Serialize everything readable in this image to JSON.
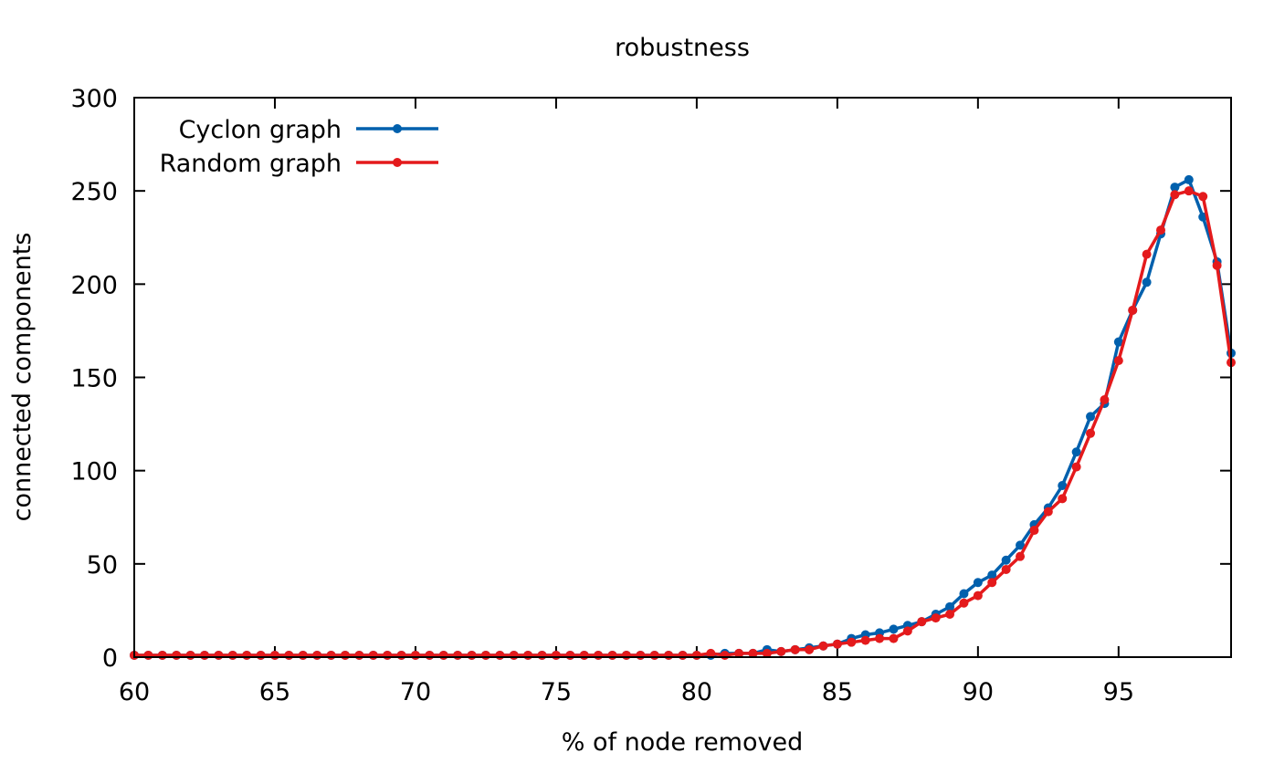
{
  "chart_data": {
    "type": "line",
    "title": "robustness",
    "xlabel": "% of node removed",
    "ylabel": "connected components",
    "xlim": [
      60,
      99
    ],
    "ylim": [
      0,
      300
    ],
    "xticks": [
      60,
      65,
      70,
      75,
      80,
      85,
      90,
      95
    ],
    "yticks": [
      0,
      50,
      100,
      150,
      200,
      250,
      300
    ],
    "grid": false,
    "legend_position": "top-left",
    "series": [
      {
        "name": "Cyclon graph",
        "color": "#0060ad",
        "points": [
          [
            60,
            1
          ],
          [
            60.5,
            1
          ],
          [
            61,
            1
          ],
          [
            61.5,
            1
          ],
          [
            62,
            1
          ],
          [
            62.5,
            1
          ],
          [
            63,
            1
          ],
          [
            63.5,
            1
          ],
          [
            64,
            1
          ],
          [
            64.5,
            1
          ],
          [
            65,
            1
          ],
          [
            65.5,
            1
          ],
          [
            66,
            1
          ],
          [
            66.5,
            1
          ],
          [
            67,
            1
          ],
          [
            67.5,
            1
          ],
          [
            68,
            1
          ],
          [
            68.5,
            1
          ],
          [
            69,
            1
          ],
          [
            69.5,
            1
          ],
          [
            70,
            1
          ],
          [
            70.5,
            1
          ],
          [
            71,
            1
          ],
          [
            71.5,
            1
          ],
          [
            72,
            1
          ],
          [
            72.5,
            1
          ],
          [
            73,
            1
          ],
          [
            73.5,
            1
          ],
          [
            74,
            1
          ],
          [
            74.5,
            1
          ],
          [
            75,
            1
          ],
          [
            75.5,
            1
          ],
          [
            76,
            1
          ],
          [
            76.5,
            1
          ],
          [
            77,
            1
          ],
          [
            77.5,
            1
          ],
          [
            78,
            1
          ],
          [
            78.5,
            1
          ],
          [
            79,
            1
          ],
          [
            79.5,
            1
          ],
          [
            80,
            1
          ],
          [
            80.5,
            1
          ],
          [
            81,
            2
          ],
          [
            81.5,
            2
          ],
          [
            82,
            2
          ],
          [
            82.5,
            4
          ],
          [
            83,
            3
          ],
          [
            83.5,
            4
          ],
          [
            84,
            5
          ],
          [
            84.5,
            6
          ],
          [
            85,
            7
          ],
          [
            85.5,
            10
          ],
          [
            86,
            12
          ],
          [
            86.5,
            13
          ],
          [
            87,
            15
          ],
          [
            87.5,
            17
          ],
          [
            88,
            19
          ],
          [
            88.5,
            23
          ],
          [
            89,
            27
          ],
          [
            89.5,
            34
          ],
          [
            90,
            40
          ],
          [
            90.5,
            44
          ],
          [
            91,
            52
          ],
          [
            91.5,
            60
          ],
          [
            92,
            71
          ],
          [
            92.5,
            80
          ],
          [
            93,
            92
          ],
          [
            93.5,
            110
          ],
          [
            94,
            129
          ],
          [
            94.5,
            136
          ],
          [
            95,
            169
          ],
          [
            95.5,
            186
          ],
          [
            96,
            201
          ],
          [
            96.5,
            227
          ],
          [
            97,
            252
          ],
          [
            97.5,
            256
          ],
          [
            98,
            236
          ],
          [
            98.5,
            212
          ],
          [
            99,
            163
          ]
        ]
      },
      {
        "name": "Random graph",
        "color": "#e41a1c",
        "points": [
          [
            60,
            1
          ],
          [
            60.5,
            1
          ],
          [
            61,
            1
          ],
          [
            61.5,
            1
          ],
          [
            62,
            1
          ],
          [
            62.5,
            1
          ],
          [
            63,
            1
          ],
          [
            63.5,
            1
          ],
          [
            64,
            1
          ],
          [
            64.5,
            1
          ],
          [
            65,
            1
          ],
          [
            65.5,
            1
          ],
          [
            66,
            1
          ],
          [
            66.5,
            1
          ],
          [
            67,
            1
          ],
          [
            67.5,
            1
          ],
          [
            68,
            1
          ],
          [
            68.5,
            1
          ],
          [
            69,
            1
          ],
          [
            69.5,
            1
          ],
          [
            70,
            1
          ],
          [
            70.5,
            1
          ],
          [
            71,
            1
          ],
          [
            71.5,
            1
          ],
          [
            72,
            1
          ],
          [
            72.5,
            1
          ],
          [
            73,
            1
          ],
          [
            73.5,
            1
          ],
          [
            74,
            1
          ],
          [
            74.5,
            1
          ],
          [
            75,
            1
          ],
          [
            75.5,
            1
          ],
          [
            76,
            1
          ],
          [
            76.5,
            1
          ],
          [
            77,
            1
          ],
          [
            77.5,
            1
          ],
          [
            78,
            1
          ],
          [
            78.5,
            1
          ],
          [
            79,
            1
          ],
          [
            79.5,
            1
          ],
          [
            80,
            1
          ],
          [
            80.5,
            2
          ],
          [
            81,
            1
          ],
          [
            81.5,
            2
          ],
          [
            82,
            2
          ],
          [
            82.5,
            2
          ],
          [
            83,
            3
          ],
          [
            83.5,
            4
          ],
          [
            84,
            4
          ],
          [
            84.5,
            6
          ],
          [
            85,
            7
          ],
          [
            85.5,
            8
          ],
          [
            86,
            9
          ],
          [
            86.5,
            10
          ],
          [
            87,
            10
          ],
          [
            87.5,
            14
          ],
          [
            88,
            19
          ],
          [
            88.5,
            21
          ],
          [
            89,
            23
          ],
          [
            89.5,
            29
          ],
          [
            90,
            33
          ],
          [
            90.5,
            40
          ],
          [
            91,
            47
          ],
          [
            91.5,
            54
          ],
          [
            92,
            68
          ],
          [
            92.5,
            78
          ],
          [
            93,
            85
          ],
          [
            93.5,
            102
          ],
          [
            94,
            120
          ],
          [
            94.5,
            138
          ],
          [
            95,
            159
          ],
          [
            95.5,
            186
          ],
          [
            96,
            216
          ],
          [
            96.5,
            229
          ],
          [
            97,
            248
          ],
          [
            97.5,
            250
          ],
          [
            98,
            247
          ],
          [
            98.5,
            210
          ],
          [
            99,
            158
          ]
        ]
      }
    ]
  }
}
